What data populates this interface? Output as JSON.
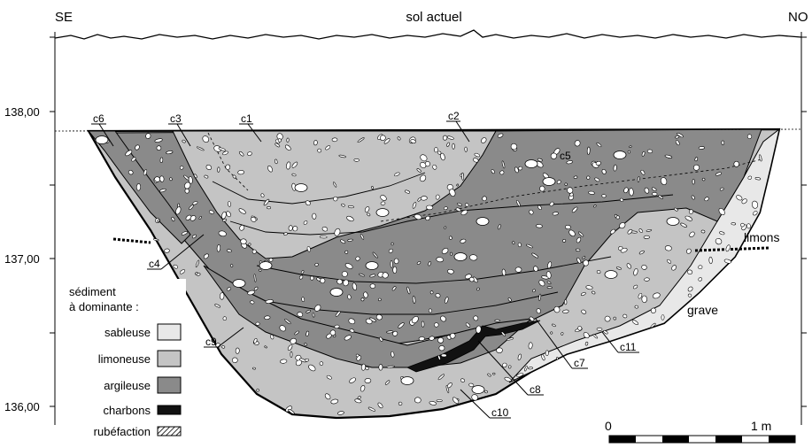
{
  "header": {
    "left_orientation": "SE",
    "surface_label": "sol actuel",
    "right_orientation": "NO"
  },
  "elevations": [
    "138,00",
    "137,00",
    "136,00"
  ],
  "layers": [
    "c1",
    "c2",
    "c3",
    "c4",
    "c5",
    "c6",
    "c7",
    "c8",
    "c9",
    "c10",
    "c11"
  ],
  "terrain": {
    "limons": "limons",
    "grave": "grave"
  },
  "legend": {
    "title_line1": "sédiment",
    "title_line2": "à dominante :",
    "items": [
      {
        "label": "sableuse",
        "color": "#e8e8e8"
      },
      {
        "label": "limoneuse",
        "color": "#c4c4c4"
      },
      {
        "label": "argileuse",
        "color": "#8a8a8a"
      },
      {
        "label": "charbons",
        "color": "#111111"
      },
      {
        "label": "rubéfaction",
        "color": "hatch"
      }
    ]
  },
  "scale": {
    "start": "0",
    "end": "1 m"
  }
}
